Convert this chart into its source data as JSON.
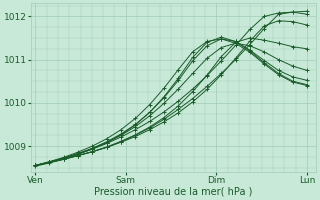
{
  "title": "Pression niveau de la mer( hPa )",
  "bg_color": "#c8e8d8",
  "line_color": "#1a5c2a",
  "grid_color": "#a0ccb8",
  "yticks": [
    1009,
    1010,
    1011,
    1012
  ],
  "ylim": [
    1008.4,
    1012.3
  ],
  "xlim": [
    -0.05,
    3.1
  ],
  "xtick_labels": [
    "Ven",
    "Sam",
    "Dim",
    "Lun"
  ],
  "xtick_positions": [
    0,
    1,
    2,
    3
  ],
  "series": [
    [
      1008.55,
      1008.62,
      1008.7,
      1008.78,
      1008.87,
      1008.97,
      1009.1,
      1009.25,
      1009.42,
      1009.62,
      1009.85,
      1010.1,
      1010.38,
      1010.68,
      1011.0,
      1011.35,
      1011.72,
      1012.05,
      1012.1,
      1012.12
    ],
    [
      1008.55,
      1008.63,
      1008.72,
      1008.82,
      1008.93,
      1009.06,
      1009.21,
      1009.38,
      1009.57,
      1009.79,
      1010.04,
      1010.32,
      1010.63,
      1010.97,
      1011.33,
      1011.7,
      1012.0,
      1012.08,
      1012.1,
      1012.05
    ],
    [
      1008.55,
      1008.62,
      1008.7,
      1008.78,
      1008.87,
      1008.97,
      1009.09,
      1009.22,
      1009.38,
      1009.56,
      1009.77,
      1010.02,
      1010.31,
      1010.65,
      1011.03,
      1011.43,
      1011.78,
      1011.9,
      1011.88,
      1011.8
    ],
    [
      1008.55,
      1008.62,
      1008.69,
      1008.78,
      1008.87,
      1008.98,
      1009.11,
      1009.26,
      1009.44,
      1009.66,
      1009.93,
      1010.26,
      1010.64,
      1011.07,
      1011.4,
      1011.5,
      1011.45,
      1011.38,
      1011.3,
      1011.25
    ],
    [
      1008.55,
      1008.63,
      1008.72,
      1008.82,
      1008.94,
      1009.08,
      1009.25,
      1009.45,
      1009.7,
      1009.99,
      1010.32,
      1010.68,
      1011.03,
      1011.28,
      1011.38,
      1011.32,
      1011.18,
      1011.0,
      1010.85,
      1010.75
    ],
    [
      1008.55,
      1008.63,
      1008.72,
      1008.83,
      1008.95,
      1009.1,
      1009.28,
      1009.5,
      1009.78,
      1010.12,
      1010.52,
      1010.97,
      1011.32,
      1011.48,
      1011.42,
      1011.22,
      1010.98,
      1010.75,
      1010.6,
      1010.52
    ],
    [
      1008.55,
      1008.64,
      1008.74,
      1008.86,
      1009.0,
      1009.17,
      1009.38,
      1009.64,
      1009.96,
      1010.34,
      1010.77,
      1011.18,
      1011.42,
      1011.48,
      1011.38,
      1011.17,
      1010.9,
      1010.65,
      1010.48,
      1010.4
    ],
    [
      1008.53,
      1008.61,
      1008.7,
      1008.81,
      1008.93,
      1009.08,
      1009.26,
      1009.49,
      1009.78,
      1010.14,
      1010.57,
      1011.05,
      1011.4,
      1011.52,
      1011.42,
      1011.2,
      1010.93,
      1010.68,
      1010.5,
      1010.42
    ]
  ],
  "n_points": 20
}
